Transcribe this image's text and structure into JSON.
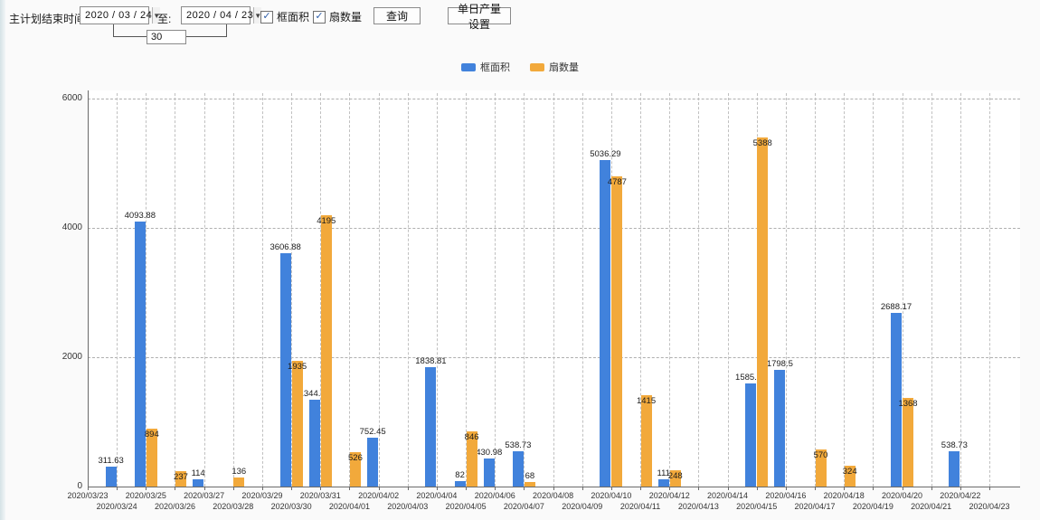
{
  "toolbar": {
    "plan_end_label": "主计划结束时间:",
    "date_from": "2020 / 03 / 24",
    "to_label": "至:",
    "date_to": "2020 / 04 / 23",
    "days_between": "30",
    "checkbox_frame_area": "框面积",
    "checkbox_fan_count": "扇数量",
    "check_glyph": "✓",
    "dropdown_glyph": "▼",
    "query_button": "查询",
    "daily_output_button": "单日产量设置"
  },
  "legend": {
    "frame_area": "框面积",
    "fan_count": "扇数量"
  },
  "colors": {
    "frame_area_blue": "#4182dc",
    "fan_count_orange": "#f2a93b"
  },
  "chart_data": {
    "type": "bar",
    "title": "",
    "xlabel": "",
    "ylabel": "",
    "ylim": [
      0,
      6000
    ],
    "yticks": [
      0,
      2000,
      4000,
      6000
    ],
    "grid": "dashed",
    "legend_position": "top-center",
    "categories": [
      "2020/03/23",
      "2020/03/24",
      "2020/03/25",
      "2020/03/26",
      "2020/03/27",
      "2020/03/28",
      "2020/03/29",
      "2020/03/30",
      "2020/03/31",
      "2020/04/01",
      "2020/04/02",
      "2020/04/03",
      "2020/04/04",
      "2020/04/05",
      "2020/04/06",
      "2020/04/07",
      "2020/04/08",
      "2020/04/09",
      "2020/04/10",
      "2020/04/11",
      "2020/04/12",
      "2020/04/13",
      "2020/04/14",
      "2020/04/15",
      "2020/04/16",
      "2020/04/17",
      "2020/04/18",
      "2020/04/19",
      "2020/04/20",
      "2020/04/21",
      "2020/04/22",
      "2020/04/23"
    ],
    "series": [
      {
        "name": "框面积",
        "color": "#4182dc",
        "values": [
          null,
          311.63,
          4093.88,
          null,
          114,
          null,
          null,
          3606.88,
          1344.95,
          null,
          752.45,
          null,
          1838.81,
          82,
          430.98,
          538.73,
          null,
          null,
          5036.29,
          null,
          111,
          null,
          null,
          1585.96,
          1798.5,
          null,
          null,
          null,
          2688.17,
          null,
          538.73,
          null
        ]
      },
      {
        "name": "扇数量",
        "color": "#f2a93b",
        "values": [
          null,
          null,
          894,
          237,
          null,
          136,
          null,
          1935,
          4195,
          526,
          null,
          null,
          null,
          846,
          null,
          68,
          null,
          null,
          4787,
          1415,
          248,
          null,
          null,
          5388,
          null,
          570,
          324,
          null,
          1368,
          null,
          null,
          null
        ]
      }
    ]
  }
}
